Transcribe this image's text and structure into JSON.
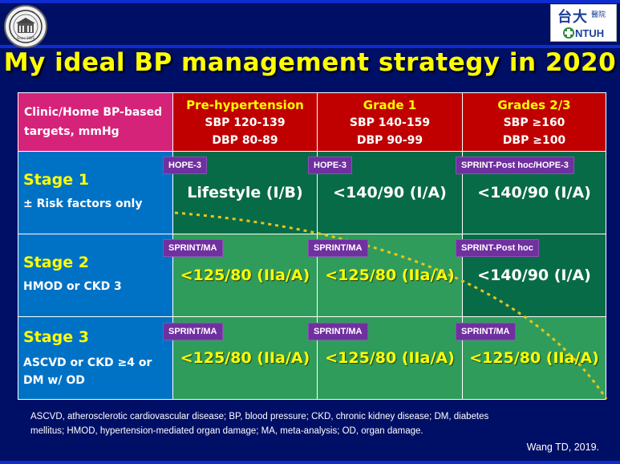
{
  "title": "My ideal BP management strategy in 2020",
  "logo_left": {
    "text": "Since 1895"
  },
  "logo_right": {
    "zh_main": "台大",
    "zh_sub": "醫院",
    "en": "NTUH"
  },
  "header": {
    "corner_line1": "Clinic/Home BP-based",
    "corner_line2": "targets, mmHg",
    "columns": [
      {
        "name": "Pre-hypertension",
        "sbp": "SBP 120-139",
        "dbp": "DBP 80-89"
      },
      {
        "name": "Grade 1",
        "sbp": "SBP 140-159",
        "dbp": "DBP 90-99"
      },
      {
        "name": "Grades 2/3",
        "sbp": "SBP ≥160",
        "dbp": "DBP ≥100"
      }
    ]
  },
  "rows": [
    {
      "stage": "Stage 1",
      "desc_line1": "± Risk factors only",
      "desc_line2": "",
      "cells": [
        {
          "tag": "HOPE-3",
          "value": "Lifestyle (I/B)"
        },
        {
          "tag": "HOPE-3",
          "value": "<140/90 (I/A)"
        },
        {
          "tag": "SPRINT-Post hoc/HOPE-3",
          "value": "<140/90 (I/A)"
        }
      ]
    },
    {
      "stage": "Stage 2",
      "desc_line1": "HMOD or CKD 3",
      "desc_line2": "",
      "cells": [
        {
          "tag": "SPRINT/MA",
          "value": "<125/80 (IIa/A)"
        },
        {
          "tag": "SPRINT/MA",
          "value": "<125/80 (IIa/A)"
        },
        {
          "tag": "SPRINT-Post hoc",
          "value": "<140/90 (I/A)"
        }
      ]
    },
    {
      "stage": "Stage 3",
      "desc_line1": "ASCVD or CKD ≥4 or",
      "desc_line2": "DM w/ OD",
      "cells": [
        {
          "tag": "SPRINT/MA",
          "value": "<125/80 (IIa/A)"
        },
        {
          "tag": "SPRINT/MA",
          "value": "<125/80 (IIa/A)"
        },
        {
          "tag": "SPRINT/MA",
          "value": "<125/80 (IIa/A)"
        }
      ]
    }
  ],
  "footnote_line1": "ASCVD, atherosclerotic cardiovascular disease; BP, blood pressure; CKD, chronic kidney disease; DM, diabetes",
  "footnote_line2": "mellitus; HMOD, hypertension-mediated organ damage; MA, meta-analysis; OD, organ damage.",
  "citation": "Wang TD, 2019.",
  "colors": {
    "background": "#000f66",
    "title": "#ffff00",
    "header_red": "#c00000",
    "corner_magenta": "#d6237a",
    "stage_blue": "#0072c6",
    "cell_dark_green": "#086b47",
    "cell_light_green": "#309c5c",
    "tag_purple": "#7030a0",
    "curve_yellow": "#e6c619"
  }
}
